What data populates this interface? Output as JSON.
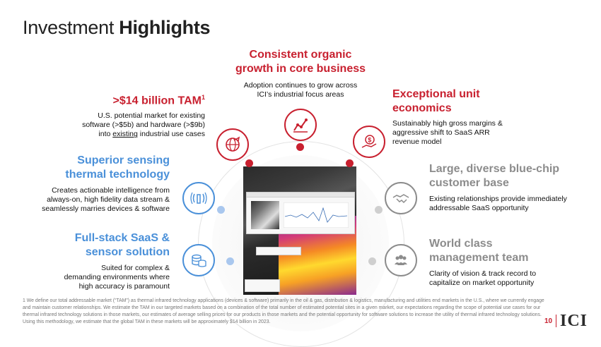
{
  "title": {
    "regular": "Investment ",
    "bold": "Highlights"
  },
  "center_top": {
    "heading_line1": "Consistent organic",
    "heading_line2": "growth in core business",
    "body_line1": "Adoption continues to grow across",
    "body_line2": "ICI’s industrial focus areas"
  },
  "tam": {
    "heading": ">$14 billion TAM",
    "sup": "1",
    "body_line1": "U.S. potential market for existing",
    "body_line2": "software (>$5b) and hardware (>$9b)",
    "body_line3_pre": "into ",
    "body_line3_u": "existing",
    "body_line3_post": " industrial use cases"
  },
  "unit_economics": {
    "heading_line1": "Exceptional unit",
    "heading_line2": "economics",
    "body_line1": "Sustainably high gross margins &",
    "body_line2": "aggressive shift to SaaS ARR",
    "body_line3": "revenue model"
  },
  "sensing": {
    "heading_line1": "Superior sensing",
    "heading_line2": "thermal technology",
    "body_line1": "Creates actionable intelligence from",
    "body_line2": "always-on, high fidelity data stream &",
    "body_line3": "seamlessly marries devices & software"
  },
  "customer": {
    "heading_line1": "Large, diverse blue-chip",
    "heading_line2": "customer base",
    "body_line1": "Existing relationships provide immediately",
    "body_line2": "addressable SaaS opportunity"
  },
  "saas": {
    "heading_line1": "Full-stack SaaS &",
    "heading_line2": "sensor solution",
    "body_line1": "Suited for complex &",
    "body_line2": "demanding environments where",
    "body_line3": "high accuracy is paramount"
  },
  "management": {
    "heading_line1": "World class",
    "heading_line2": "management team",
    "body_line1": "Clarity of vision & track record to",
    "body_line2": "capitalize on market opportunity"
  },
  "footnote": "1 We define our total addressable market (“TAM”) as thermal infrared technology applications (devices & software) primarily in the oil & gas, distribution & logistics, manufacturing and utilities end markets in the U.S., where we currently engage and maintain customer relationships. We estimate the TAM in our targeted markets based on a combination of the total number of estimated potential sites in a given market, our expectations regarding the scope of potential use cases for our thermal infrared technology solutions in those markets, our estimates of average selling prices for our products in those markets and the potential opportunity for software solutions to increase the utility of thermal infrared technology solutions. Using this methodology, we estimate that the global TAM in these markets will be approximately $14 billion in 2023.",
  "page_number": "10",
  "logo": "ICI",
  "colors": {
    "red": "#c8202f",
    "blue": "#4a90d9",
    "gray": "#8c8c8c"
  },
  "icons": [
    "growth-chart-icon",
    "globe-icon",
    "dollar-hand-icon",
    "wireless-sensor-icon",
    "handshake-icon",
    "database-icon",
    "team-icon"
  ]
}
